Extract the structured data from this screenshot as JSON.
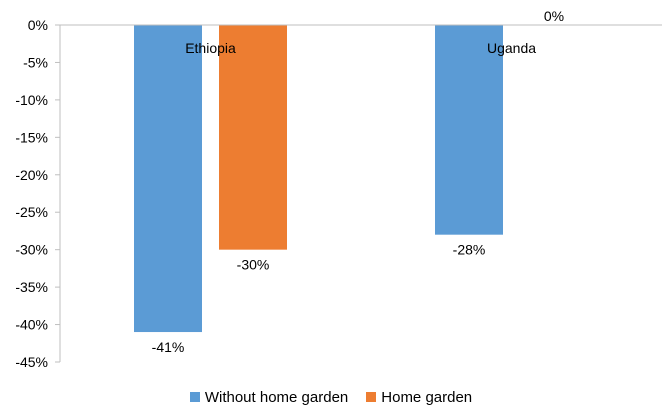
{
  "chart_data": {
    "type": "bar",
    "categories": [
      "Ethiopia",
      "Uganda"
    ],
    "series": [
      {
        "name": "Without home garden",
        "color": "#5B9BD5",
        "values": [
          -41,
          -28
        ],
        "labels": [
          "-41%",
          "-28%"
        ]
      },
      {
        "name": "Home garden",
        "color": "#ED7D31",
        "values": [
          -30,
          0
        ],
        "labels": [
          "-30%",
          "0%"
        ]
      }
    ],
    "y_ticks": [
      0,
      -5,
      -10,
      -15,
      -20,
      -25,
      -30,
      -35,
      -40,
      -45
    ],
    "y_tick_labels": [
      "0%",
      "-5%",
      "-10%",
      "-15%",
      "-20%",
      "-25%",
      "-30%",
      "-35%",
      "-40%",
      "-45%"
    ],
    "ylim": [
      -45,
      0
    ],
    "grid": false,
    "legend_position": "bottom",
    "title": "",
    "xlabel": "",
    "ylabel": ""
  },
  "legend": {
    "items": [
      {
        "label": "Without home garden",
        "color": "#5B9BD5"
      },
      {
        "label": "Home garden",
        "color": "#ED7D31"
      }
    ]
  }
}
